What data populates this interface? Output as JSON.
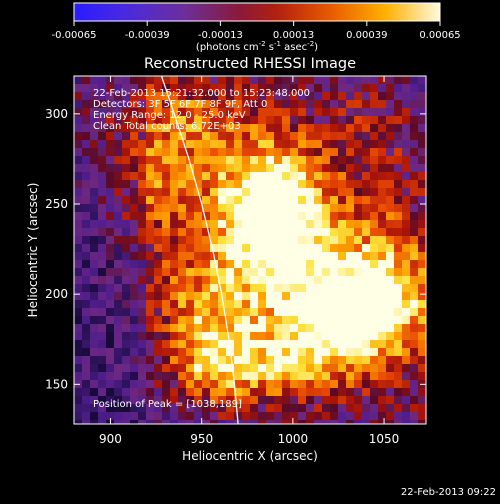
{
  "chart_data": {
    "type": "heatmap",
    "title": "Reconstructed RHESSI Image",
    "xlabel": "Heliocentric X (arcsec)",
    "ylabel": "Heliocentric Y (arcsec)",
    "xlim": [
      880,
      1073
    ],
    "ylim": [
      128,
      321
    ],
    "x_ticks": [
      900,
      950,
      1000,
      1050
    ],
    "y_ticks": [
      150,
      200,
      250,
      300
    ],
    "colorbar": {
      "ticks": [
        "-0.00065",
        "-0.00039",
        "-0.00013",
        "0.00013",
        "0.00039",
        "0.00065"
      ],
      "range": [
        -0.00065,
        0.00065
      ],
      "unit_prefix": "(photons cm",
      "unit_sup1": "-2",
      "unit_mid": " s",
      "unit_sup2": "-1",
      "unit_mid2": " asec",
      "unit_sup3": "-2",
      "unit_suffix": ")"
    },
    "annotations": [
      "22-Feb-2013 15:21:32.000 to 15:23:48.000",
      "Detectors: 3F 5F 6F 7F 8F 9F, Att 0",
      "Energy Range: 12.0 - 25.0 keV",
      "Clean     Total counts: 6.72E+03"
    ],
    "peak_label": "Position of Peak = [1038,189]",
    "peak": [
      1038,
      189
    ],
    "hot_spots": [
      {
        "x": 1038,
        "y": 189,
        "amp": 1.0,
        "sx": 22,
        "sy": 18
      },
      {
        "x": 987,
        "y": 250,
        "amp": 0.9,
        "sx": 20,
        "sy": 24
      },
      {
        "x": 1005,
        "y": 215,
        "amp": 0.55,
        "sx": 30,
        "sy": 30
      },
      {
        "x": 950,
        "y": 190,
        "amp": 0.5,
        "sx": 22,
        "sy": 25
      },
      {
        "x": 960,
        "y": 160,
        "amp": 0.55,
        "sx": 18,
        "sy": 16
      },
      {
        "x": 1000,
        "y": 160,
        "amp": 0.5,
        "sx": 22,
        "sy": 16
      },
      {
        "x": 1060,
        "y": 225,
        "amp": 0.35,
        "sx": 18,
        "sy": 22
      },
      {
        "x": 925,
        "y": 260,
        "amp": 0.35,
        "sx": 20,
        "sy": 25
      },
      {
        "x": 950,
        "y": 300,
        "amp": 0.35,
        "sx": 28,
        "sy": 18
      },
      {
        "x": 1040,
        "y": 290,
        "amp": 0.3,
        "sx": 25,
        "sy": 22
      }
    ],
    "limb_curve": [
      [
        928,
        321
      ],
      [
        935,
        300
      ],
      [
        943,
        275
      ],
      [
        950,
        250
      ],
      [
        956,
        225
      ],
      [
        961,
        200
      ],
      [
        965,
        175
      ],
      [
        968,
        150
      ],
      [
        970,
        128
      ]
    ],
    "grid": false
  },
  "timestamp": "22-Feb-2013 09:22"
}
